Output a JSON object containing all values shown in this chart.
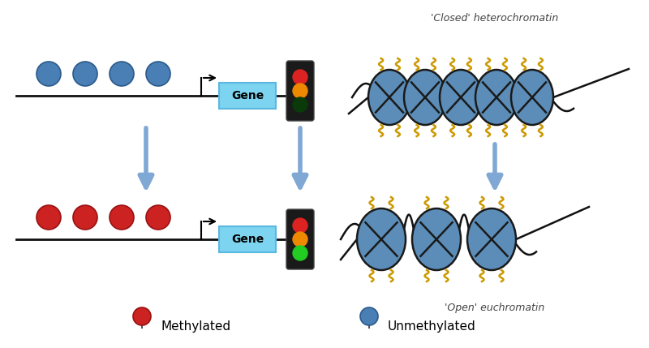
{
  "bg_color": "#ffffff",
  "blue_ball_color": "#4a7fb5",
  "blue_ball_edge": "#2a5a8a",
  "red_ball_color": "#cc2222",
  "red_ball_edge": "#991111",
  "gene_box_color": "#7dd4f0",
  "gene_box_edge": "#5ab8e0",
  "arrow_color": "#7fa8d4",
  "dna_line_color": "#111111",
  "traffic_light_body": "#1a1a1a",
  "traffic_red": "#dd2222",
  "traffic_orange": "#ee8800",
  "traffic_green_off": "#0a3a0a",
  "traffic_green_on": "#22cc22",
  "nucleosome_color": "#5b8db8",
  "nucleosome_edge": "#1a1a1a",
  "tail_color": "#cc9900",
  "dna_wrap_color": "#111111",
  "closed_label": "'Closed' heterochromatin",
  "open_label": "'Open' euchromatin",
  "methylated_label": "Methylated",
  "unmethylated_label": "Unmethylated",
  "gene_label": "Gene",
  "figsize": [
    8.0,
    4.29
  ],
  "dpi": 100
}
